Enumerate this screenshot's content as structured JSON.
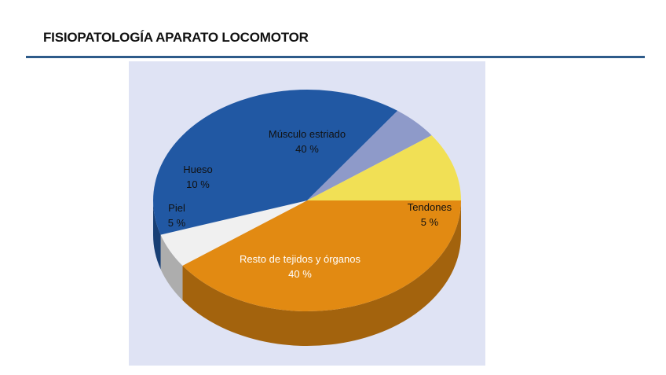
{
  "header": {
    "title": "FISIOPATOLOGÍA  APARATO LOCOMOTOR",
    "rule_color": "#2e5b8a"
  },
  "chart_data": {
    "type": "pie",
    "style": "3d",
    "panel_color": "#dfe3f4",
    "slices": [
      {
        "name": "Músculo estriado",
        "value": 40,
        "value_label": "40 %",
        "color": "#e28a12"
      },
      {
        "name": "Tendones",
        "value": 5,
        "value_label": "5 %",
        "color": "#f0f0f0"
      },
      {
        "name": "Resto de tejidos y órganos",
        "value": 40,
        "value_label": "40 %",
        "color": "#2158a3"
      },
      {
        "name": "Piel",
        "value": 5,
        "value_label": "5 %",
        "color": "#8e9ac9"
      },
      {
        "name": "Hueso",
        "value": 10,
        "value_label": "10 %",
        "color": "#f1e055"
      }
    ]
  }
}
